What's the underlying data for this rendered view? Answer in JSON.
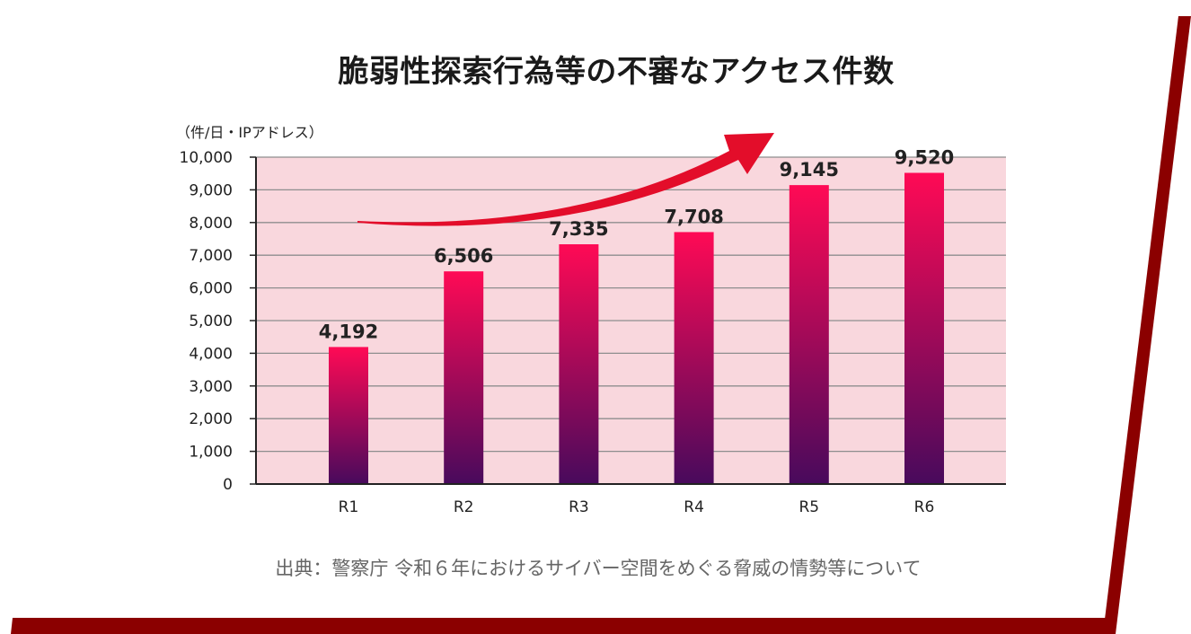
{
  "colors": {
    "frame": "#8b0000",
    "plot_background": "#f9d7dd",
    "bar_top": "#ff0a55",
    "bar_bottom": "#480a5c",
    "arrow": "#e30d2a",
    "gridline": "#8e8e8e"
  },
  "chart_data": {
    "type": "bar",
    "title": "脆弱性探索行為等の不審なアクセス件数",
    "ylabel": "（件/日・IPアドレス）",
    "xlabel": "",
    "categories": [
      "R1",
      "R2",
      "R3",
      "R4",
      "R5",
      "R6"
    ],
    "values": [
      4192,
      6506,
      7335,
      7708,
      9145,
      9520
    ],
    "value_labels": [
      "4,192",
      "6,506",
      "7,335",
      "7,708",
      "9,145",
      "9,520"
    ],
    "ylim": [
      0,
      10000
    ],
    "yticks": [
      0,
      1000,
      2000,
      3000,
      4000,
      5000,
      6000,
      7000,
      8000,
      9000,
      10000
    ],
    "ytick_labels": [
      "0",
      "1,000",
      "2,000",
      "3,000",
      "4,000",
      "5,000",
      "6,000",
      "7,000",
      "8,000",
      "9,000",
      "10,000"
    ],
    "grid": true,
    "annotations": [
      "upward-trend-arrow"
    ]
  },
  "source": "出典：警察庁 令和６年におけるサイバー空間をめぐる脅威の情勢等について"
}
